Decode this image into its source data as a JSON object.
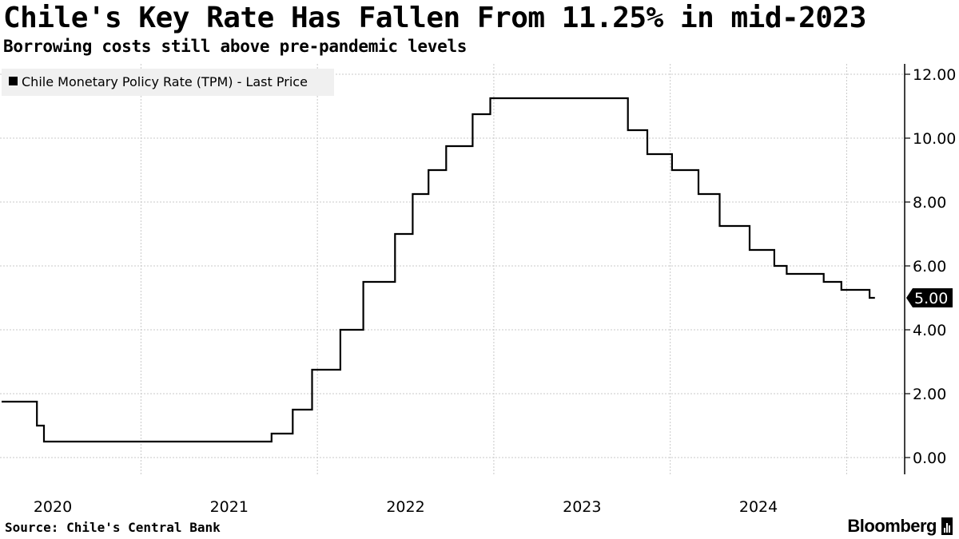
{
  "header": {
    "title": "Chile's Key Rate Has Fallen From 11.25% in mid-2023",
    "subtitle": "Borrowing costs still above pre-pandemic levels"
  },
  "footer": {
    "source": "Source: Chile's Central Bank",
    "brand": "Bloomberg"
  },
  "colors": {
    "line": "#000000",
    "grid": "#c8c8c8",
    "legend_bg": "#f0f0f0"
  },
  "chart_data": {
    "type": "line",
    "step": true,
    "title": "Chile's Key Rate Has Fallen From 11.25% in mid-2023",
    "subtitle": "Borrowing costs still above pre-pandemic levels",
    "xlabel": "",
    "ylabel": "",
    "x_axis": {
      "range": [
        2019.71,
        2024.72
      ],
      "tick_labels": [
        "2020",
        "2021",
        "2022",
        "2023",
        "2024"
      ],
      "tick_label_positions": [
        2020.0,
        2021.0,
        2022.0,
        2023.0,
        2024.0
      ],
      "gridline_positions": [
        2020.5,
        2021.5,
        2022.5,
        2023.5,
        2024.5
      ]
    },
    "y_axis": {
      "side": "right",
      "range": [
        -0.5,
        12.3
      ],
      "ticks": [
        0,
        2,
        4,
        6,
        8,
        10,
        12
      ],
      "tick_labels": [
        "0.00",
        "2.00",
        "4.00",
        "6.00",
        "8.00",
        "10.00",
        "12.00"
      ]
    },
    "legend": {
      "position": "top-left",
      "entries": [
        "Chile Monetary Policy Rate (TPM) - Last Price"
      ]
    },
    "last_value_label": "5.00",
    "series": [
      {
        "name": "Chile Monetary Policy Rate (TPM) - Last Price",
        "points": [
          [
            2019.71,
            1.75
          ],
          [
            2019.91,
            1.75
          ],
          [
            2019.91,
            1.0
          ],
          [
            2019.95,
            1.0
          ],
          [
            2019.95,
            0.5
          ],
          [
            2021.24,
            0.5
          ],
          [
            2021.24,
            0.75
          ],
          [
            2021.36,
            0.75
          ],
          [
            2021.36,
            1.5
          ],
          [
            2021.47,
            1.5
          ],
          [
            2021.47,
            2.75
          ],
          [
            2021.63,
            2.75
          ],
          [
            2021.63,
            4.0
          ],
          [
            2021.76,
            4.0
          ],
          [
            2021.76,
            5.5
          ],
          [
            2021.94,
            5.5
          ],
          [
            2021.94,
            7.0
          ],
          [
            2022.04,
            7.0
          ],
          [
            2022.04,
            8.25
          ],
          [
            2022.13,
            8.25
          ],
          [
            2022.13,
            9.0
          ],
          [
            2022.23,
            9.0
          ],
          [
            2022.23,
            9.75
          ],
          [
            2022.38,
            9.75
          ],
          [
            2022.38,
            10.75
          ],
          [
            2022.48,
            10.75
          ],
          [
            2022.48,
            11.25
          ],
          [
            2023.26,
            11.25
          ],
          [
            2023.26,
            10.25
          ],
          [
            2023.37,
            10.25
          ],
          [
            2023.37,
            9.5
          ],
          [
            2023.51,
            9.5
          ],
          [
            2023.51,
            9.0
          ],
          [
            2023.66,
            9.0
          ],
          [
            2023.66,
            8.25
          ],
          [
            2023.78,
            8.25
          ],
          [
            2023.78,
            7.25
          ],
          [
            2023.95,
            7.25
          ],
          [
            2023.95,
            6.5
          ],
          [
            2024.09,
            6.5
          ],
          [
            2024.09,
            6.0
          ],
          [
            2024.16,
            6.0
          ],
          [
            2024.16,
            5.75
          ],
          [
            2024.37,
            5.75
          ],
          [
            2024.37,
            5.5
          ],
          [
            2024.47,
            5.5
          ],
          [
            2024.47,
            5.25
          ],
          [
            2024.63,
            5.25
          ],
          [
            2024.63,
            5.0
          ],
          [
            2024.66,
            5.0
          ]
        ]
      }
    ]
  }
}
